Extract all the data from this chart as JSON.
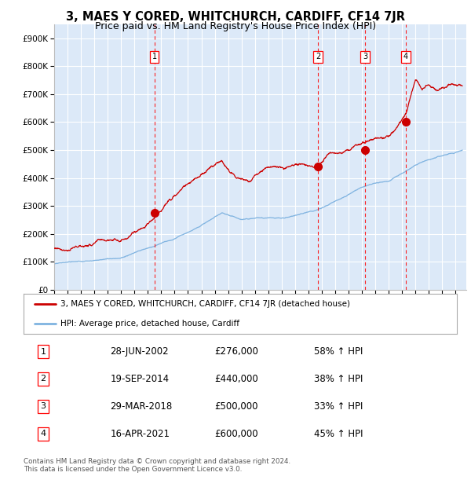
{
  "title": "3, MAES Y CORED, WHITCHURCH, CARDIFF, CF14 7JR",
  "subtitle": "Price paid vs. HM Land Registry's House Price Index (HPI)",
  "legend_label_red": "3, MAES Y CORED, WHITCHURCH, CARDIFF, CF14 7JR (detached house)",
  "legend_label_blue": "HPI: Average price, detached house, Cardiff",
  "footer": "Contains HM Land Registry data © Crown copyright and database right 2024.\nThis data is licensed under the Open Government Licence v3.0.",
  "sales": [
    {
      "num": 1,
      "date_x": 2002.49,
      "price": 276000,
      "label": "28-JUN-2002",
      "pct": "58% ↑ HPI"
    },
    {
      "num": 2,
      "date_x": 2014.72,
      "price": 440000,
      "label": "19-SEP-2014",
      "pct": "38% ↑ HPI"
    },
    {
      "num": 3,
      "date_x": 2018.24,
      "price": 500000,
      "label": "29-MAR-2018",
      "pct": "33% ↑ HPI"
    },
    {
      "num": 4,
      "date_x": 2021.29,
      "price": 600000,
      "label": "16-APR-2021",
      "pct": "45% ↑ HPI"
    }
  ],
  "ylim": [
    0,
    950000
  ],
  "xlim_start": 1995.0,
  "xlim_end": 2025.8,
  "plot_bg": "#dce9f8",
  "grid_color": "#ffffff",
  "red_line_color": "#cc0000",
  "blue_line_color": "#7fb3e0",
  "marker_color": "#cc0000",
  "title_fontsize": 10.5,
  "subtitle_fontsize": 9,
  "hpi_keypoints": [
    [
      1995.0,
      92000
    ],
    [
      1997.0,
      100000
    ],
    [
      2000.0,
      120000
    ],
    [
      2002.0,
      150000
    ],
    [
      2004.0,
      185000
    ],
    [
      2007.5,
      280000
    ],
    [
      2009.0,
      255000
    ],
    [
      2010.0,
      255000
    ],
    [
      2012.0,
      260000
    ],
    [
      2013.5,
      275000
    ],
    [
      2014.5,
      290000
    ],
    [
      2016.0,
      325000
    ],
    [
      2018.0,
      370000
    ],
    [
      2020.0,
      390000
    ],
    [
      2021.5,
      430000
    ],
    [
      2023.0,
      465000
    ],
    [
      2025.5,
      500000
    ]
  ],
  "red_keypoints": [
    [
      1995.0,
      148000
    ],
    [
      1997.0,
      160000
    ],
    [
      2000.0,
      190000
    ],
    [
      2002.49,
      276000
    ],
    [
      2004.0,
      355000
    ],
    [
      2006.0,
      430000
    ],
    [
      2007.5,
      470000
    ],
    [
      2008.5,
      415000
    ],
    [
      2009.5,
      400000
    ],
    [
      2010.5,
      420000
    ],
    [
      2011.5,
      440000
    ],
    [
      2012.5,
      450000
    ],
    [
      2013.5,
      450000
    ],
    [
      2014.72,
      440000
    ],
    [
      2015.5,
      490000
    ],
    [
      2016.5,
      470000
    ],
    [
      2017.0,
      480000
    ],
    [
      2018.24,
      500000
    ],
    [
      2019.0,
      510000
    ],
    [
      2020.0,
      530000
    ],
    [
      2021.29,
      600000
    ],
    [
      2022.0,
      720000
    ],
    [
      2022.5,
      680000
    ],
    [
      2023.0,
      710000
    ],
    [
      2023.5,
      690000
    ],
    [
      2024.0,
      700000
    ],
    [
      2024.5,
      715000
    ],
    [
      2025.5,
      730000
    ]
  ]
}
